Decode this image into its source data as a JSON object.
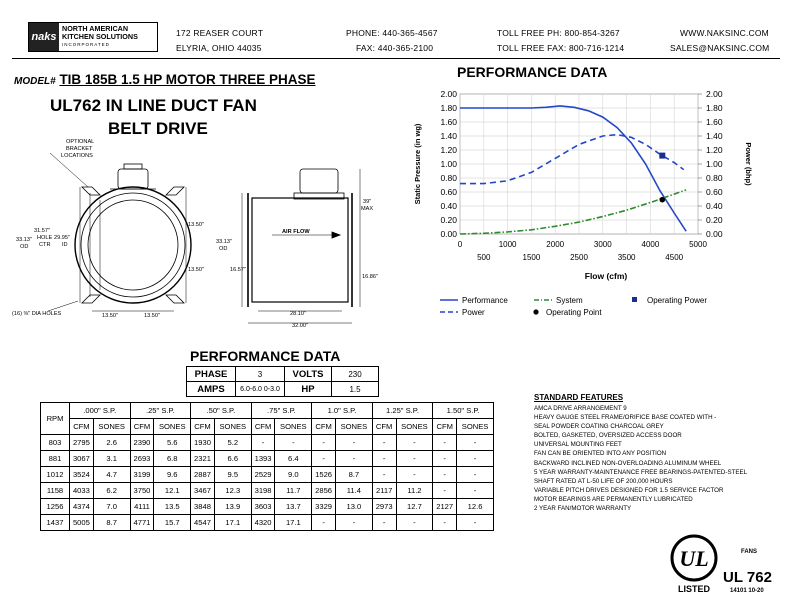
{
  "header": {
    "logo_mark": "naks",
    "logo_line1": "NORTH AMERICAN",
    "logo_line2": "KITCHEN SOLUTIONS",
    "logo_line3": "INCORPORATED",
    "address1": "172 REASER COURT",
    "address2": "ELYRIA, OHIO 44035",
    "phone": "PHONE: 440-365-4567",
    "fax": "FAX: 440-365-2100",
    "toll_free_phone": "TOLL FREE PH: 800-854-3267",
    "toll_free_fax": "TOLL FREE FAX: 800-716-1214",
    "website": "WWW.NAKSINC.COM",
    "email": "SALES@NAKSINC.COM"
  },
  "model": {
    "label": "MODEL#",
    "name": "TIB 185B  1.5 HP MOTOR THREE PHASE",
    "line2": "UL762 IN LINE DUCT FAN",
    "line3": "BELT DRIVE"
  },
  "drawing": {
    "optional": "OPTIONAL",
    "bracket": "BRACKET",
    "locations": "LOCATIONS",
    "d_3313": "33.13\"",
    "od": "OD",
    "d_3157": "31.57\"",
    "hole": "HOLE",
    "ctr": "CTR",
    "d_2995": "29.95\"",
    "id": "ID",
    "d_1350": "13.50\"",
    "d_1657": "16.57\"",
    "d_1686": "16.86\"",
    "d_39": "39\"",
    "max": "MAX",
    "holes": "(16) ⅜\" DIA HOLES",
    "d_2810": "28.10\"",
    "d_3200": "32.00\"",
    "air_flow": "AIR FLOW"
  },
  "chart_data": {
    "type": "line",
    "title": "PERFORMANCE DATA",
    "xlabel": "Flow (cfm)",
    "ylabel": "Static Pressure (in wg)",
    "y2label": "Power (bhp)",
    "xlim": [
      0,
      5000
    ],
    "ylim": [
      0,
      2.0
    ],
    "y2lim": [
      0,
      2.0
    ],
    "xticks_top": [
      "0",
      "1000",
      "2000",
      "3000",
      "4000",
      "5000"
    ],
    "xticks_bottom": [
      "500",
      "1500",
      "2500",
      "3500",
      "4500"
    ],
    "yticks": [
      "0.00",
      "0.20",
      "0.40",
      "0.60",
      "0.80",
      "1.00",
      "1.20",
      "1.40",
      "1.60",
      "1.80",
      "2.00"
    ],
    "grid": true,
    "series": [
      {
        "name": "Performance",
        "color": "#2447c8",
        "dash": "solid",
        "x": [
          0,
          500,
          1000,
          1500,
          1800,
          2100,
          2400,
          2700,
          3000,
          3300,
          3600,
          3900,
          4200,
          4500,
          4750
        ],
        "y": [
          1.8,
          1.8,
          1.8,
          1.8,
          1.81,
          1.83,
          1.81,
          1.76,
          1.67,
          1.52,
          1.3,
          1.0,
          0.62,
          0.3,
          0.04
        ]
      },
      {
        "name": "Power",
        "color": "#2447c8",
        "dash": "dashed",
        "x": [
          0,
          500,
          1000,
          1500,
          2000,
          2500,
          3000,
          3300,
          3600,
          3900,
          4200,
          4500,
          4700
        ],
        "y": [
          0.72,
          0.72,
          0.76,
          0.88,
          1.08,
          1.28,
          1.4,
          1.42,
          1.38,
          1.28,
          1.14,
          1.02,
          0.92
        ]
      },
      {
        "name": "System",
        "color": "#2e8b2e",
        "dash": "dashdot",
        "x": [
          0,
          500,
          1000,
          1500,
          2000,
          2500,
          3000,
          3500,
          4000,
          4500,
          4750
        ],
        "y": [
          0.0,
          0.01,
          0.03,
          0.06,
          0.11,
          0.17,
          0.25,
          0.34,
          0.45,
          0.57,
          0.63
        ]
      }
    ],
    "operating_point": {
      "name": "Operating Point",
      "x": 4250,
      "y": 0.49
    },
    "operating_power": {
      "name": "Operating Power",
      "x": 4250,
      "y": 1.12
    }
  },
  "spec": {
    "title": "PERFORMANCE DATA",
    "phase_label": "PHASE",
    "phase": "3",
    "volts_label": "VOLTS",
    "volts": "230",
    "amps_label": "AMPS",
    "amps": "6.0-6.0 0-3.0",
    "hp_label": "HP",
    "hp": "1.5"
  },
  "rpm_table": {
    "rpm_header": "RPM",
    "sp_headers": [
      ".000\" S.P.",
      ".25\" S.P.",
      ".50\" S.P.",
      ".75\" S.P.",
      "1.0\" S.P.",
      "1.25\" S.P.",
      "1.50\" S.P."
    ],
    "cfm": "CFM",
    "sones": "SONES",
    "rows": [
      [
        "803",
        "2795",
        "2.6",
        "2390",
        "5.6",
        "1930",
        "5.2",
        "-",
        "-",
        "-",
        "-",
        "-",
        "-",
        "-",
        "-"
      ],
      [
        "881",
        "3067",
        "3.1",
        "2693",
        "6.8",
        "2321",
        "6.6",
        "1393",
        "6.4",
        "-",
        "-",
        "-",
        "-",
        "-",
        "-"
      ],
      [
        "1012",
        "3524",
        "4.7",
        "3199",
        "9.6",
        "2887",
        "9.5",
        "2529",
        "9.0",
        "1526",
        "8.7",
        "-",
        "-",
        "-",
        "-"
      ],
      [
        "1158",
        "4033",
        "6.2",
        "3750",
        "12.1",
        "3467",
        "12.3",
        "3198",
        "11.7",
        "2856",
        "11.4",
        "2117",
        "11.2",
        "-",
        "-"
      ],
      [
        "1256",
        "4374",
        "7.0",
        "4111",
        "13.5",
        "3848",
        "13.9",
        "3603",
        "13.7",
        "3329",
        "13.0",
        "2973",
        "12.7",
        "2127",
        "12.6"
      ],
      [
        "1437",
        "5005",
        "8.7",
        "4771",
        "15.7",
        "4547",
        "17.1",
        "4320",
        "17.1",
        "-",
        "-",
        "-",
        "-",
        "-",
        "-"
      ]
    ]
  },
  "standard_features": {
    "title": "STANDARD FEATURES",
    "items": [
      "AMCA DRIVE ARRANGEMENT 9",
      "HEAVY GAUGE STEEL FRAME/ORIFICE BASE COATED WITH -",
      "SEAL POWDER COATING CHARCOAL GREY",
      "BOLTED, GASKETED, OVERSIZED ACCESS DOOR",
      "UNIVERSAL MOUNTING FEET",
      "FAN CAN BE ORIENTED INTO ANY POSITION",
      "BACKWARD INCLINED NON-OVERLOADING ALUMINUM WHEEL",
      "5 YEAR WARRANTY-MAINTENANCE FREE BEARINGS-PATENTED-STEEL",
      "SHAFT RATED AT L-50 LIFE OF 200,000 HOURS",
      "VARIABLE PITCH DRIVES DESIGNED FOR 1.5 SERVICE FACTOR",
      "MOTOR BEARINGS ARE PERMANENTLY LUBRICATED",
      "2 YEAR FAN/MOTOR WARRANTY"
    ]
  },
  "ul": {
    "logo_text": "UL",
    "listed": "LISTED",
    "fans": "FANS",
    "standard": "UL 762",
    "file": "14101 10-20"
  }
}
